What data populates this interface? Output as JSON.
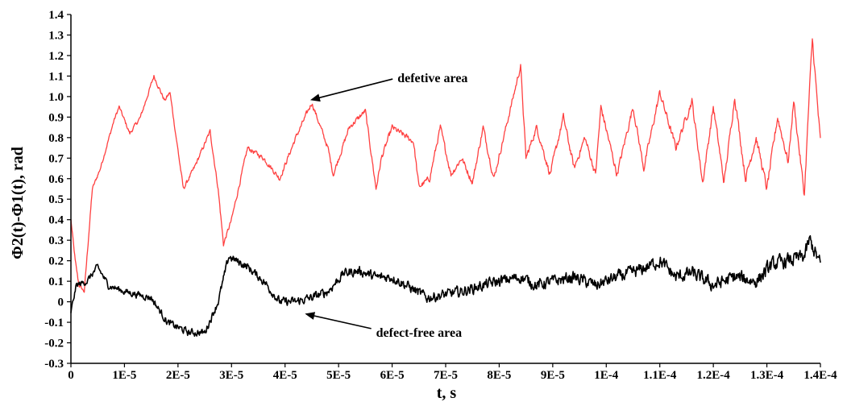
{
  "chart_data": {
    "type": "line",
    "xlabel": "t, s",
    "ylabel": "Φ2(t)-Φ1(t), rad",
    "xlim": [
      0,
      0.00014
    ],
    "ylim": [
      -0.3,
      1.4
    ],
    "x_ticks": [
      0,
      1e-05,
      2e-05,
      3e-05,
      4e-05,
      5e-05,
      6e-05,
      7e-05,
      8e-05,
      9e-05,
      0.0001,
      0.00011,
      0.00012,
      0.00013,
      0.00014
    ],
    "x_tick_labels": [
      "0",
      "1E-5",
      "2E-5",
      "3E-5",
      "4E-5",
      "5E-5",
      "6E-5",
      "7E-5",
      "8E-5",
      "9E-5",
      "1E-4",
      "1.1E-4",
      "1.2E-4",
      "1.3E-4",
      "1.4E-4"
    ],
    "y_ticks": [
      -0.3,
      -0.2,
      -0.1,
      0,
      0.1,
      0.2,
      0.3,
      0.4,
      0.5,
      0.6,
      0.7,
      0.8,
      0.9,
      1.0,
      1.1,
      1.2,
      1.3,
      1.4
    ],
    "y_tick_labels": [
      "-0.3",
      "-0.2",
      "-0.1",
      "0",
      "0.1",
      "0.2",
      "0.3",
      "0.4",
      "0.5",
      "0.6",
      "0.7",
      "0.8",
      "0.9",
      "1.0",
      "1.1",
      "1.2",
      "1.3",
      "1.4"
    ],
    "grid": false,
    "series": [
      {
        "color": "#ff4040",
        "noise": 0.035,
        "x": [
          0,
          8e-07,
          1.5e-06,
          2.5e-06,
          4e-06,
          5.5e-06,
          8e-06,
          9e-06,
          1.1e-05,
          1.3e-05,
          1.55e-05,
          1.75e-05,
          1.85e-05,
          2.1e-05,
          2.3e-05,
          2.6e-05,
          2.75e-05,
          2.85e-05,
          3e-05,
          3.3e-05,
          3.6e-05,
          3.9e-05,
          4.2e-05,
          4.5e-05,
          4.8e-05,
          4.9e-05,
          5.2e-05,
          5.5e-05,
          5.7e-05,
          5.8e-05,
          6e-05,
          6.4e-05,
          6.5e-05,
          6.7e-05,
          6.9e-05,
          7.1e-05,
          7.3e-05,
          7.5e-05,
          7.7e-05,
          7.9e-05,
          8.1e-05,
          8.4e-05,
          8.5e-05,
          8.7e-05,
          8.95e-05,
          9.2e-05,
          9.4e-05,
          9.6e-05,
          9.8e-05,
          9.9e-05,
          0.000102,
          0.000105,
          0.000107,
          0.00011,
          0.000113,
          0.000116,
          0.000118,
          0.00012,
          0.000122,
          0.000124,
          0.000126,
          0.000128,
          0.00013,
          0.000132,
          0.000134,
          0.000135,
          0.000137,
          0.000138,
          0.0001385,
          0.00014
        ],
        "y": [
          0.4,
          0.2,
          0.08,
          0.05,
          0.55,
          0.65,
          0.88,
          0.95,
          0.82,
          0.9,
          1.1,
          0.98,
          1.02,
          0.55,
          0.65,
          0.83,
          0.55,
          0.28,
          0.4,
          0.75,
          0.7,
          0.6,
          0.8,
          0.97,
          0.75,
          0.62,
          0.85,
          0.93,
          0.55,
          0.7,
          0.85,
          0.78,
          0.56,
          0.6,
          0.85,
          0.62,
          0.7,
          0.58,
          0.85,
          0.6,
          0.82,
          1.15,
          0.7,
          0.85,
          0.62,
          0.9,
          0.65,
          0.8,
          0.62,
          0.95,
          0.62,
          0.95,
          0.65,
          1.02,
          0.75,
          0.98,
          0.58,
          0.95,
          0.58,
          1.0,
          0.6,
          0.8,
          0.55,
          0.9,
          0.68,
          0.98,
          0.52,
          1.05,
          1.28,
          0.78
        ]
      },
      {
        "color": "#000000",
        "noise": 0.06,
        "x": [
          0,
          1e-06,
          3e-06,
          5e-06,
          7e-06,
          1e-05,
          1.5e-05,
          1.8e-05,
          2.2e-05,
          2.5e-05,
          2.75e-05,
          2.95e-05,
          3.3e-05,
          3.6e-05,
          3.9e-05,
          4.2e-05,
          4.5e-05,
          4.8e-05,
          5.1e-05,
          5.4e-05,
          5.7e-05,
          6e-05,
          6.4e-05,
          6.65e-05,
          6.9e-05,
          7.3e-05,
          7.7e-05,
          8e-05,
          8.4e-05,
          8.7e-05,
          9e-05,
          9.4e-05,
          9.8e-05,
          0.000102,
          0.000106,
          0.00011,
          0.000113,
          0.000116,
          0.00012,
          0.000124,
          0.000128,
          0.000131,
          0.000134,
          0.000137,
          0.000138,
          0.00014
        ],
        "y": [
          -0.05,
          0.08,
          0.1,
          0.17,
          0.08,
          0.05,
          0.02,
          -0.1,
          -0.15,
          -0.15,
          0.0,
          0.22,
          0.17,
          0.1,
          0.0,
          0.0,
          0.02,
          0.05,
          0.14,
          0.15,
          0.12,
          0.12,
          0.06,
          0.02,
          0.03,
          0.05,
          0.08,
          0.1,
          0.12,
          0.08,
          0.1,
          0.12,
          0.08,
          0.12,
          0.15,
          0.2,
          0.12,
          0.14,
          0.08,
          0.12,
          0.1,
          0.18,
          0.2,
          0.22,
          0.3,
          0.18
        ]
      }
    ],
    "annotations": [
      {
        "text": "defetive area",
        "x": 6.1e-05,
        "y": 1.07,
        "arrow_to": [
          4.5e-05,
          0.985
        ]
      },
      {
        "text": "defect-free area",
        "x": 5.7e-05,
        "y": -0.17,
        "arrow_to": [
          4.4e-05,
          -0.06
        ]
      }
    ]
  }
}
